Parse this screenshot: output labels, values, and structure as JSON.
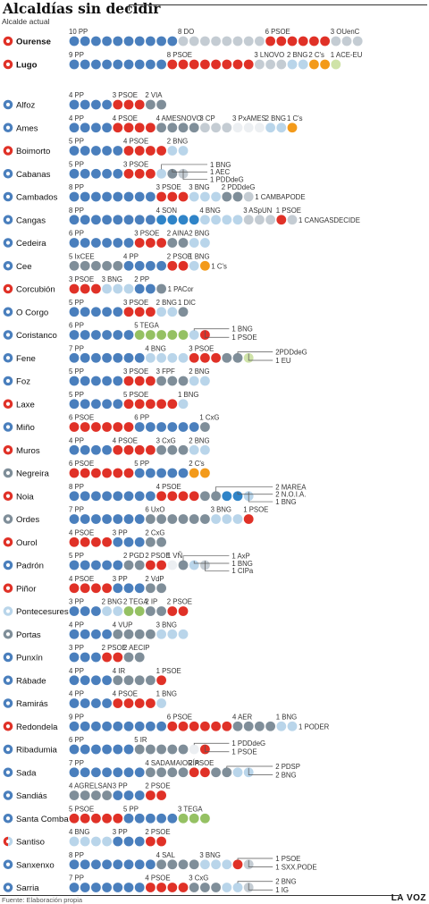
{
  "title": "Alcaldías sin decidir",
  "legend_label": "Alcalde actual",
  "source": "Fuente: Elaboración propia",
  "brand": "LA VOZ",
  "colors": {
    "PP": "#4a7fbd",
    "PSOE": "#e03127",
    "BNG": "#b9d5ea",
    "NAT": "#7f8e99",
    "OTHER": "#c4ccd3",
    "ORANGE": "#f39a1a",
    "GREEN": "#95c163",
    "LGREEN": "#cfe3a8",
    "SON": "#2f84c8",
    "WHITE": "#eceff2"
  },
  "chart_data": {
    "type": "dot-matrix",
    "unit": "concejales",
    "rows": [
      {
        "name": "Ourense",
        "mayor": "PSOE",
        "capital": true,
        "parties": [
          {
            "label": "10 PP",
            "n": 10,
            "color": "PP"
          },
          {
            "label": "8 DO",
            "n": 8,
            "color": "OTHER"
          },
          {
            "label": "6 PSOE",
            "n": 6,
            "color": "PSOE"
          },
          {
            "label": "3 OUenC",
            "n": 3,
            "color": "OTHER"
          }
        ]
      },
      {
        "name": "Lugo",
        "mayor": "PSOE",
        "capital": true,
        "parties": [
          {
            "label": "9 PP",
            "n": 9,
            "color": "PP"
          },
          {
            "label": "8 PSOE",
            "n": 8,
            "color": "PSOE"
          },
          {
            "label": "3 LNOVO",
            "n": 3,
            "color": "OTHER"
          },
          {
            "label": "2 BNG",
            "n": 2,
            "color": "BNG"
          },
          {
            "label": "2 C's",
            "n": 2,
            "color": "ORANGE"
          },
          {
            "label": "1 ACE-EU",
            "n": 1,
            "color": "LGREEN"
          }
        ]
      },
      {
        "name": "Alfoz",
        "mayor": "PP",
        "parties": [
          {
            "label": "4 PP",
            "n": 4,
            "color": "PP"
          },
          {
            "label": "3 PSOE",
            "n": 3,
            "color": "PSOE"
          },
          {
            "label": "2 VIA",
            "n": 2,
            "color": "NAT"
          }
        ]
      },
      {
        "name": "Ames",
        "mayor": "PP",
        "parties": [
          {
            "label": "4 PP",
            "n": 4,
            "color": "PP"
          },
          {
            "label": "4 PSOE",
            "n": 4,
            "color": "PSOE"
          },
          {
            "label": "4 AMESNOVO",
            "n": 4,
            "color": "NAT"
          },
          {
            "label": "3 CP",
            "n": 3,
            "color": "OTHER"
          },
          {
            "label": "3 PxAMES",
            "n": 3,
            "color": "WHITE"
          },
          {
            "label": "2 BNG",
            "n": 2,
            "color": "BNG"
          },
          {
            "label": "1 C's",
            "n": 1,
            "color": "ORANGE"
          }
        ]
      },
      {
        "name": "Boimorto",
        "mayor": "PSOE",
        "parties": [
          {
            "label": "5 PP",
            "n": 5,
            "color": "PP"
          },
          {
            "label": "4 PSOE",
            "n": 4,
            "color": "PSOE"
          },
          {
            "label": "2 BNG",
            "n": 2,
            "color": "BNG"
          }
        ]
      },
      {
        "name": "Cabanas",
        "mayor": "PP",
        "parties": [
          {
            "label": "5 PP",
            "n": 5,
            "color": "PP"
          },
          {
            "label": "3 PSOE",
            "n": 3,
            "color": "PSOE"
          }
        ],
        "side": [
          {
            "label": "1 BNG",
            "color": "BNG"
          },
          {
            "label": "1 AEC",
            "color": "NAT"
          },
          {
            "label": "1 PDDdeG",
            "color": "OTHER"
          }
        ]
      },
      {
        "name": "Cambados",
        "mayor": "PP",
        "parties": [
          {
            "label": "8 PP",
            "n": 8,
            "color": "PP"
          },
          {
            "label": "3 PSOE",
            "n": 3,
            "color": "PSOE"
          },
          {
            "label": "3 BNG",
            "n": 3,
            "color": "BNG"
          },
          {
            "label": "2 PDDdeG",
            "n": 2,
            "color": "NAT"
          }
        ],
        "trail": {
          "label": "1 CAMBAPODE",
          "color": "OTHER"
        }
      },
      {
        "name": "Cangas",
        "mayor": "PP",
        "parties": [
          {
            "label": "8 PP",
            "n": 8,
            "color": "PP"
          },
          {
            "label": "4 SON",
            "n": 4,
            "color": "SON"
          },
          {
            "label": "4 BNG",
            "n": 4,
            "color": "BNG"
          },
          {
            "label": "3 ASpUN",
            "n": 3,
            "color": "OTHER"
          },
          {
            "label": "1 PSOE",
            "n": 1,
            "color": "PSOE"
          }
        ],
        "trail": {
          "label": "1 CANGASDECIDE",
          "color": "OTHER"
        }
      },
      {
        "name": "Cedeira",
        "mayor": "PP",
        "parties": [
          {
            "label": "6 PP",
            "n": 6,
            "color": "PP"
          },
          {
            "label": "3 PSOE",
            "n": 3,
            "color": "PSOE"
          },
          {
            "label": "2 AINA",
            "n": 2,
            "color": "NAT"
          }
        ],
        "trail": {
          "label": "2 BNG",
          "n": 2,
          "color": "BNG"
        }
      },
      {
        "name": "Cee",
        "mayor": "PP",
        "parties": [
          {
            "label": "5 IxCEE",
            "n": 5,
            "color": "NAT"
          },
          {
            "label": "4 PP",
            "n": 4,
            "color": "PP"
          },
          {
            "label": "2 PSOE",
            "n": 2,
            "color": "PSOE"
          },
          {
            "label": "1 BNG",
            "n": 1,
            "color": "BNG"
          }
        ],
        "trail": {
          "label": "1 C's",
          "color": "ORANGE"
        }
      },
      {
        "name": "Corcubión",
        "mayor": "PSOE",
        "parties": [
          {
            "label": "3 PSOE",
            "n": 3,
            "color": "PSOE"
          },
          {
            "label": "3 BNG",
            "n": 3,
            "color": "BNG"
          },
          {
            "label": "2 PP",
            "n": 2,
            "color": "PP"
          }
        ],
        "trail": {
          "label": "1 PACor",
          "color": "NAT"
        }
      },
      {
        "name": "O Corgo",
        "mayor": "PP",
        "parties": [
          {
            "label": "5 PP",
            "n": 5,
            "color": "PP"
          },
          {
            "label": "3 PSOE",
            "n": 3,
            "color": "PSOE"
          },
          {
            "label": "2 BNG",
            "n": 2,
            "color": "BNG"
          },
          {
            "label": "1 DIC",
            "n": 1,
            "color": "NAT"
          }
        ]
      },
      {
        "name": "Coristanco",
        "mayor": "PP",
        "parties": [
          {
            "label": "6 PP",
            "n": 6,
            "color": "PP"
          },
          {
            "label": "5 TEGA",
            "n": 5,
            "color": "GREEN"
          }
        ],
        "side": [
          {
            "label": "1 BNG",
            "color": "BNG"
          },
          {
            "label": "1 PSOE",
            "color": "PSOE"
          }
        ]
      },
      {
        "name": "Fene",
        "mayor": "PP",
        "parties": [
          {
            "label": "7 PP",
            "n": 7,
            "color": "PP"
          },
          {
            "label": "4 BNG",
            "n": 4,
            "color": "BNG"
          },
          {
            "label": "3 PSOE",
            "n": 3,
            "color": "PSOE"
          }
        ],
        "side": [
          {
            "label": "2PDDdeG",
            "color": "NAT",
            "n": 2
          },
          {
            "label": "1 EU",
            "color": "LGREEN"
          }
        ]
      },
      {
        "name": "Foz",
        "mayor": "PP",
        "parties": [
          {
            "label": "5 PP",
            "n": 5,
            "color": "PP"
          },
          {
            "label": "3 PSOE",
            "n": 3,
            "color": "PSOE"
          },
          {
            "label": "3 FPF",
            "n": 3,
            "color": "NAT"
          },
          {
            "label": "2 BNG",
            "n": 2,
            "color": "BNG"
          }
        ]
      },
      {
        "name": "Laxe",
        "mayor": "PSOE",
        "parties": [
          {
            "label": "5 PP",
            "n": 5,
            "color": "PP"
          },
          {
            "label": "5 PSOE",
            "n": 5,
            "color": "PSOE"
          },
          {
            "label": "1 BNG",
            "n": 1,
            "color": "BNG"
          }
        ]
      },
      {
        "name": "Miño",
        "mayor": "PP",
        "parties": [
          {
            "label": "6 PSOE",
            "n": 6,
            "color": "PSOE"
          },
          {
            "label": "6 PP",
            "n": 6,
            "color": "PP"
          },
          {
            "label": "1 CxG",
            "n": 1,
            "color": "NAT"
          }
        ]
      },
      {
        "name": "Muros",
        "mayor": "PSOE",
        "parties": [
          {
            "label": "4 PP",
            "n": 4,
            "color": "PP"
          },
          {
            "label": "4 PSOE",
            "n": 4,
            "color": "PSOE"
          },
          {
            "label": "3 CxG",
            "n": 3,
            "color": "NAT"
          },
          {
            "label": "2 BNG",
            "n": 2,
            "color": "BNG"
          }
        ]
      },
      {
        "name": "Negreira",
        "mayor": "NAT",
        "parties": [
          {
            "label": "6 PSOE",
            "n": 6,
            "color": "PSOE"
          },
          {
            "label": "5 PP",
            "n": 5,
            "color": "PP"
          },
          {
            "label": "2 C's",
            "n": 2,
            "color": "ORANGE"
          }
        ]
      },
      {
        "name": "Noia",
        "mayor": "PSOE",
        "parties": [
          {
            "label": "8 PP",
            "n": 8,
            "color": "PP"
          },
          {
            "label": "4  PSOE",
            "n": 4,
            "color": "PSOE"
          }
        ],
        "side": [
          {
            "label": "2 MAREA",
            "color": "NAT",
            "n": 2
          },
          {
            "label": "2 N.O.I.A.",
            "color": "SON",
            "n": 2
          },
          {
            "label": "1 BNG",
            "color": "BNG"
          }
        ]
      },
      {
        "name": "Ordes",
        "mayor": "NAT",
        "parties": [
          {
            "label": "7 PP",
            "n": 7,
            "color": "PP"
          },
          {
            "label": "6 UxO",
            "n": 6,
            "color": "NAT"
          },
          {
            "label": "3 BNG",
            "n": 3,
            "color": "BNG"
          },
          {
            "label": "1 PSOE",
            "n": 1,
            "color": "PSOE"
          }
        ]
      },
      {
        "name": "Ourol",
        "mayor": "PSOE",
        "parties": [
          {
            "label": "4 PSOE",
            "n": 4,
            "color": "PSOE"
          },
          {
            "label": "3 PP",
            "n": 3,
            "color": "PP"
          },
          {
            "label": "2 CxG",
            "n": 2,
            "color": "NAT"
          }
        ]
      },
      {
        "name": "Padrón",
        "mayor": "PP",
        "parties": [
          {
            "label": "5 PP",
            "n": 5,
            "color": "PP"
          },
          {
            "label": "2 PGD",
            "n": 2,
            "color": "NAT"
          },
          {
            "label": "2 PSOE",
            "n": 2,
            "color": "PSOE"
          },
          {
            "label": "1 VÑ",
            "n": 1,
            "color": "WHITE"
          }
        ],
        "side": [
          {
            "label": "1 AxP",
            "color": "NAT"
          },
          {
            "label": "1 BNG",
            "color": "BNG"
          },
          {
            "label": "1 CIPa",
            "color": "OTHER"
          }
        ]
      },
      {
        "name": "Piñor",
        "mayor": "PSOE",
        "parties": [
          {
            "label": "4 PSOE",
            "n": 4,
            "color": "PSOE"
          },
          {
            "label": "3 PP",
            "n": 3,
            "color": "PP"
          },
          {
            "label": "2 VdP",
            "n": 2,
            "color": "NAT"
          }
        ]
      },
      {
        "name": "Pontecesures",
        "mayor": "BNG",
        "parties": [
          {
            "label": "3 PP",
            "n": 3,
            "color": "PP"
          },
          {
            "label": "2 BNG",
            "n": 2,
            "color": "BNG"
          },
          {
            "label": "2 TEGA",
            "n": 2,
            "color": "GREEN"
          },
          {
            "label": "2 IP",
            "n": 2,
            "color": "NAT"
          },
          {
            "label": "2 PSOE",
            "n": 2,
            "color": "PSOE"
          }
        ]
      },
      {
        "name": "Portas",
        "mayor": "NAT",
        "parties": [
          {
            "label": "4 PP",
            "n": 4,
            "color": "PP"
          },
          {
            "label": "4 VUP",
            "n": 4,
            "color": "NAT"
          },
          {
            "label": "3 BNG",
            "n": 3,
            "color": "BNG"
          }
        ]
      },
      {
        "name": "Punxín",
        "mayor": "PP",
        "parties": [
          {
            "label": "3 PP",
            "n": 3,
            "color": "PP"
          },
          {
            "label": "2 PSOE",
            "n": 2,
            "color": "PSOE"
          }
        ],
        "trail": {
          "label": "2 AECIP",
          "n": 2,
          "color": "NAT"
        }
      },
      {
        "name": "Rábade",
        "mayor": "PP",
        "parties": [
          {
            "label": "4 PP",
            "n": 4,
            "color": "PP"
          },
          {
            "label": "4 IR",
            "n": 4,
            "color": "NAT"
          },
          {
            "label": "1 PSOE",
            "n": 1,
            "color": "PSOE"
          }
        ]
      },
      {
        "name": "Ramirás",
        "mayor": "PP",
        "parties": [
          {
            "label": "4 PP",
            "n": 4,
            "color": "PP"
          },
          {
            "label": "4 PSOE",
            "n": 4,
            "color": "PSOE"
          },
          {
            "label": "1 BNG",
            "n": 1,
            "color": "BNG"
          }
        ]
      },
      {
        "name": "Redondela",
        "mayor": "PSOE",
        "parties": [
          {
            "label": "9 PP",
            "n": 9,
            "color": "PP"
          },
          {
            "label": "6 PSOE",
            "n": 6,
            "color": "PSOE"
          },
          {
            "label": "4 AER",
            "n": 4,
            "color": "NAT"
          },
          {
            "label": "1 BNG",
            "n": 1,
            "color": "BNG"
          }
        ],
        "trail": {
          "label": "1 PODER",
          "color": "BNG"
        }
      },
      {
        "name": "Ribadumia",
        "mayor": "PP",
        "parties": [
          {
            "label": "6 PP",
            "n": 6,
            "color": "PP"
          },
          {
            "label": "5 IR",
            "n": 5,
            "color": "NAT"
          }
        ],
        "side": [
          {
            "label": "1 PDDdeG",
            "color": "WHITE"
          },
          {
            "label": "1 PSOE",
            "color": "PSOE"
          }
        ]
      },
      {
        "name": "Sada",
        "mayor": "PP",
        "parties": [
          {
            "label": "7 PP",
            "n": 7,
            "color": "PP"
          },
          {
            "label": "4 SADAMAIORÍA",
            "n": 4,
            "color": "NAT"
          },
          {
            "label": "2 PSOE",
            "n": 2,
            "color": "PSOE"
          }
        ],
        "side": [
          {
            "label": "2 PDSP",
            "color": "NAT",
            "n": 2
          },
          {
            "label": "2 BNG",
            "color": "BNG",
            "n": 2
          }
        ]
      },
      {
        "name": "Sandiás",
        "mayor": "PP",
        "parties": [
          {
            "label": "4 AGRELSAN",
            "n": 4,
            "color": "NAT"
          },
          {
            "label": "3 PP",
            "n": 3,
            "color": "PP"
          },
          {
            "label": "2 PSOE",
            "n": 2,
            "color": "PSOE"
          }
        ]
      },
      {
        "name": "Santa Comba",
        "mayor": "PP",
        "parties": [
          {
            "label": "5 PSOE",
            "n": 5,
            "color": "PSOE"
          },
          {
            "label": "5 PP",
            "n": 5,
            "color": "PP"
          },
          {
            "label": "3 TEGA",
            "n": 3,
            "color": "GREEN"
          }
        ]
      },
      {
        "name": "Santiso",
        "mayor": "SPLIT",
        "parties": [
          {
            "label": "4 BNG",
            "n": 4,
            "color": "BNG"
          },
          {
            "label": "3 PP",
            "n": 3,
            "color": "PP"
          },
          {
            "label": "2 PSOE",
            "n": 2,
            "color": "PSOE"
          }
        ]
      },
      {
        "name": "Sanxenxo",
        "mayor": "PP",
        "parties": [
          {
            "label": "8 PP",
            "n": 8,
            "color": "PP"
          },
          {
            "label": "4 SAL",
            "n": 4,
            "color": "NAT"
          },
          {
            "label": "3 BNG",
            "n": 3,
            "color": "BNG"
          }
        ],
        "side": [
          {
            "label": "1 PSOE",
            "color": "PSOE"
          },
          {
            "label": "1 SXX.PODE",
            "color": "OTHER"
          }
        ]
      },
      {
        "name": "Sarria",
        "mayor": "PP",
        "parties": [
          {
            "label": "7 PP",
            "n": 7,
            "color": "PP"
          },
          {
            "label": "4 PSOE",
            "n": 4,
            "color": "PSOE"
          },
          {
            "label": "3 CxG",
            "n": 3,
            "color": "NAT"
          }
        ],
        "side": [
          {
            "label": "2 BNG",
            "color": "BNG",
            "n": 2
          },
          {
            "label": "1 IG",
            "color": "OTHER"
          }
        ]
      }
    ]
  }
}
